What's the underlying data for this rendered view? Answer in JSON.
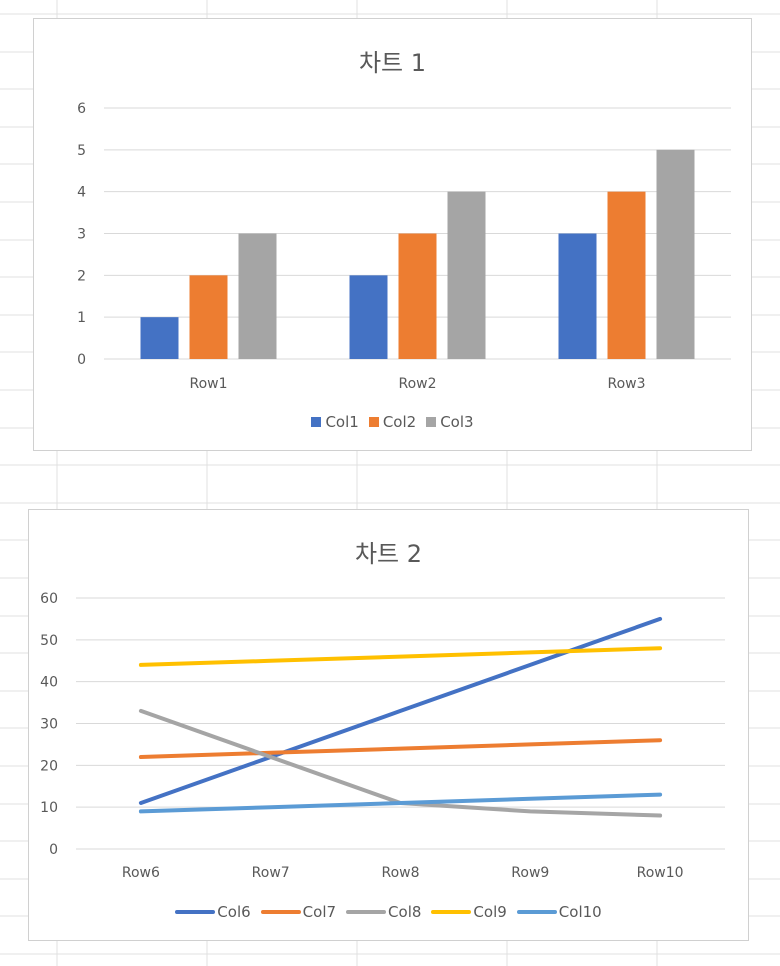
{
  "colors": {
    "gridline": "#d9d9d9",
    "axis_text": "#595959",
    "sheet_grid": "#e0e0e0"
  },
  "chart_data": [
    {
      "type": "bar",
      "title": "차트 1",
      "categories": [
        "Row1",
        "Row2",
        "Row3"
      ],
      "series": [
        {
          "name": "Col1",
          "values": [
            1,
            2,
            3
          ],
          "color": "#4472C4"
        },
        {
          "name": "Col2",
          "values": [
            2,
            3,
            4
          ],
          "color": "#ED7D31"
        },
        {
          "name": "Col3",
          "values": [
            3,
            4,
            5
          ],
          "color": "#A5A5A5"
        }
      ],
      "ylim": [
        0,
        6
      ],
      "yticks": [
        0,
        1,
        2,
        3,
        4,
        5,
        6
      ],
      "grid": true,
      "legend_position": "bottom"
    },
    {
      "type": "line",
      "title": "차트 2",
      "categories": [
        "Row6",
        "Row7",
        "Row8",
        "Row9",
        "Row10"
      ],
      "series": [
        {
          "name": "Col6",
          "values": [
            11,
            22,
            33,
            44,
            55
          ],
          "color": "#4472C4"
        },
        {
          "name": "Col7",
          "values": [
            22,
            23,
            24,
            25,
            26
          ],
          "color": "#ED7D31"
        },
        {
          "name": "Col8",
          "values": [
            33,
            22,
            11,
            9,
            8
          ],
          "color": "#A5A5A5"
        },
        {
          "name": "Col9",
          "values": [
            44,
            45,
            46,
            47,
            48
          ],
          "color": "#FFC000"
        },
        {
          "name": "Col10",
          "values": [
            9,
            10,
            11,
            12,
            13
          ],
          "color": "#5B9BD5"
        }
      ],
      "ylim": [
        0,
        60
      ],
      "yticks": [
        0,
        10,
        20,
        30,
        40,
        50,
        60
      ],
      "grid": true,
      "legend_position": "bottom"
    }
  ]
}
